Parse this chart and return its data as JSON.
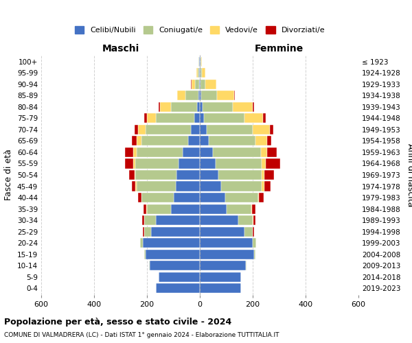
{
  "age_groups": [
    "0-4",
    "5-9",
    "10-14",
    "15-19",
    "20-24",
    "25-29",
    "30-34",
    "35-39",
    "40-44",
    "45-49",
    "50-54",
    "55-59",
    "60-64",
    "65-69",
    "70-74",
    "75-79",
    "80-84",
    "85-89",
    "90-94",
    "95-99",
    "100+"
  ],
  "birth_years": [
    "2019-2023",
    "2014-2018",
    "2009-2013",
    "2004-2008",
    "1999-2003",
    "1994-1998",
    "1989-1993",
    "1984-1988",
    "1979-1983",
    "1974-1978",
    "1969-1973",
    "1964-1968",
    "1959-1963",
    "1954-1958",
    "1949-1953",
    "1944-1948",
    "1939-1943",
    "1934-1938",
    "1929-1933",
    "1924-1928",
    "≤ 1923"
  ],
  "colors": {
    "celibi": "#4472c4",
    "coniugati": "#b5c98e",
    "vedovi": "#ffd966",
    "divorziati": "#c00000"
  },
  "males": {
    "celibi": [
      165,
      155,
      190,
      205,
      215,
      185,
      165,
      110,
      100,
      90,
      88,
      80,
      65,
      45,
      35,
      20,
      10,
      5,
      2,
      2,
      2
    ],
    "coniugati": [
      2,
      2,
      2,
      5,
      10,
      25,
      45,
      90,
      120,
      150,
      155,
      165,
      175,
      175,
      170,
      145,
      100,
      50,
      15,
      5,
      2
    ],
    "vedovi": [
      0,
      0,
      0,
      0,
      0,
      1,
      1,
      2,
      2,
      3,
      5,
      8,
      12,
      20,
      30,
      35,
      40,
      30,
      15,
      5,
      1
    ],
    "divorziati": [
      0,
      0,
      0,
      1,
      2,
      5,
      8,
      10,
      12,
      15,
      20,
      30,
      30,
      18,
      12,
      10,
      5,
      2,
      1,
      0,
      0
    ]
  },
  "females": {
    "nubili": [
      155,
      155,
      175,
      205,
      200,
      170,
      145,
      100,
      95,
      80,
      70,
      60,
      50,
      35,
      25,
      15,
      10,
      5,
      2,
      2,
      2
    ],
    "coniugate": [
      2,
      2,
      2,
      5,
      12,
      30,
      55,
      95,
      125,
      155,
      165,
      175,
      180,
      175,
      175,
      155,
      115,
      60,
      20,
      5,
      2
    ],
    "vedove": [
      0,
      0,
      0,
      0,
      0,
      1,
      2,
      3,
      4,
      8,
      10,
      15,
      25,
      45,
      65,
      70,
      75,
      65,
      40,
      15,
      3
    ],
    "divorziate": [
      0,
      0,
      0,
      1,
      2,
      5,
      8,
      12,
      18,
      25,
      35,
      55,
      35,
      15,
      12,
      10,
      5,
      2,
      1,
      0,
      0
    ]
  },
  "xlim": 600,
  "title_main": "Popolazione per età, sesso e stato civile - 2024",
  "title_sub": "COMUNE DI VALMADRERA (LC) - Dati ISTAT 1° gennaio 2024 - Elaborazione TUTTITALIA.IT",
  "xlabel_maschi": "Maschi",
  "xlabel_femmine": "Femmine",
  "ylabel_left": "Fasce di età",
  "ylabel_right": "Anni di nascita",
  "legend_labels": [
    "Celibi/Nubili",
    "Coniugati/e",
    "Vedovi/e",
    "Divorziati/e"
  ],
  "xticks": [
    -600,
    -400,
    -200,
    0,
    200,
    400,
    600
  ],
  "xtick_labels": [
    "600",
    "400",
    "200",
    "0",
    "200",
    "400",
    "600"
  ],
  "bg_color": "#ffffff",
  "grid_color": "#cccccc"
}
